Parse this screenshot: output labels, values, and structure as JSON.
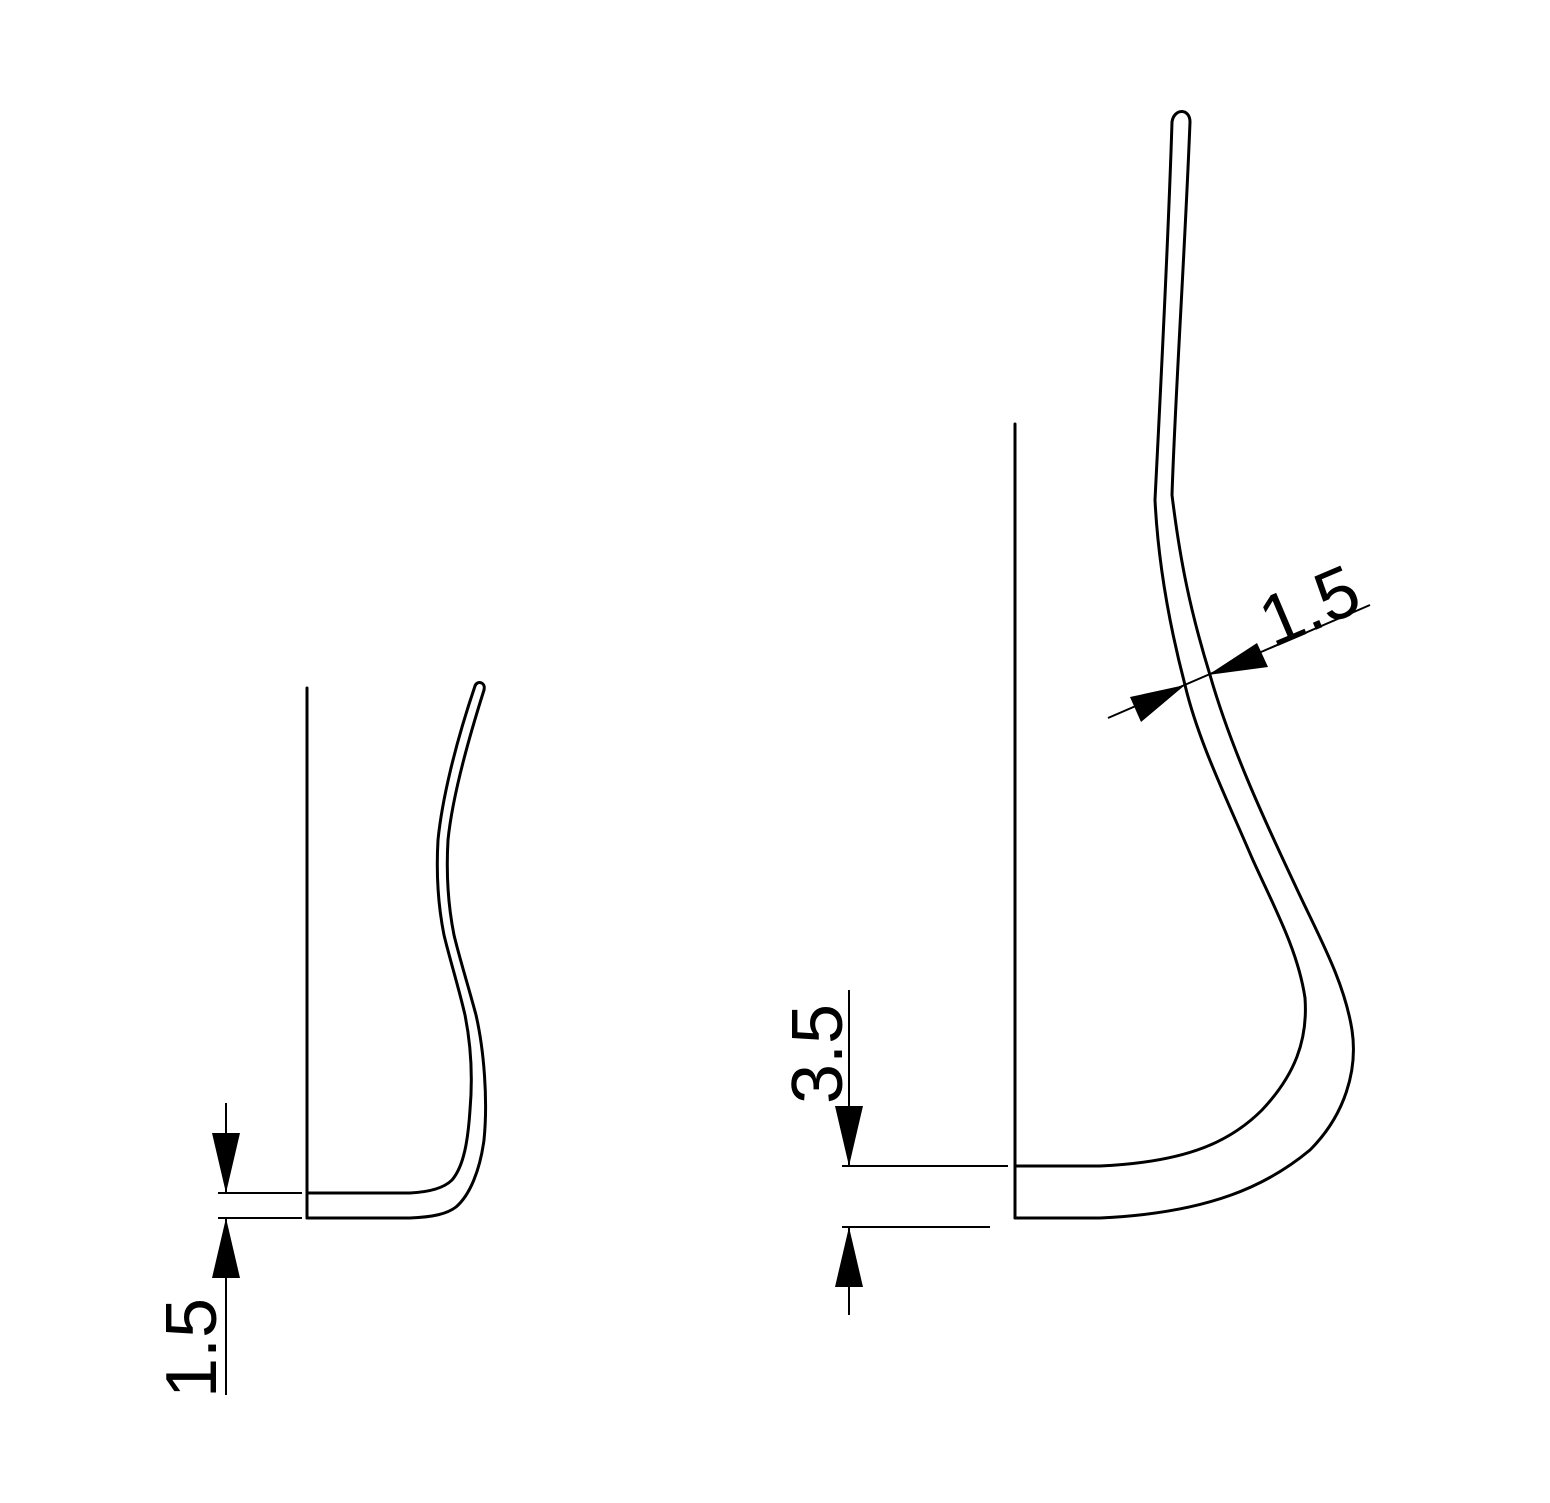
{
  "dimensions": {
    "left_thickness": "1.5",
    "right_thickness": "3.5",
    "right_wall": "1.5"
  },
  "colors": {
    "line": "#000000",
    "background": "#ffffff"
  }
}
